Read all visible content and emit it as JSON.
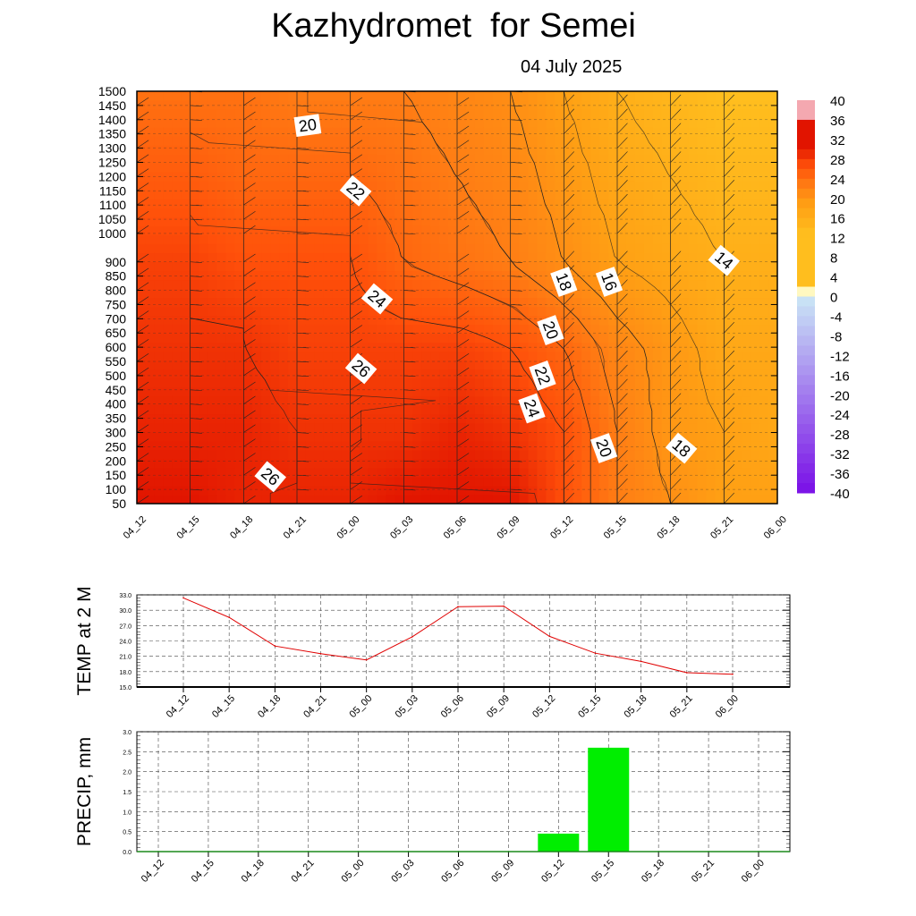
{
  "header": {
    "title": "Kazhydromet  for Semei",
    "date": "04 July 2025"
  },
  "chart_data": [
    {
      "type": "heatmap",
      "ylim": [
        50,
        1500
      ],
      "yticks": [
        50,
        100,
        150,
        200,
        250,
        300,
        350,
        400,
        450,
        500,
        550,
        600,
        650,
        700,
        750,
        800,
        850,
        900,
        1000,
        1050,
        1100,
        1150,
        1200,
        1250,
        1300,
        1350,
        1400,
        1450,
        1500
      ],
      "times": [
        "04_12",
        "04_15",
        "04_18",
        "04_21",
        "05_00",
        "05_03",
        "05_06",
        "05_09",
        "05_12",
        "05_15",
        "05_18",
        "05_21",
        "06_00"
      ],
      "heights": [
        50,
        300,
        600,
        900,
        1200,
        1500
      ],
      "temperature_grid": [
        [
          28,
          28,
          27,
          27,
          27,
          28,
          28,
          28,
          24,
          20,
          18,
          16,
          16
        ],
        [
          27,
          27,
          27,
          26,
          26,
          26,
          27,
          26,
          24,
          20,
          17,
          16,
          15
        ],
        [
          26,
          26,
          26,
          25,
          25,
          25,
          25,
          24,
          22,
          19,
          17,
          15,
          15
        ],
        [
          25,
          25,
          24,
          24,
          24,
          22,
          21,
          20,
          18,
          16,
          15,
          14,
          14
        ],
        [
          23,
          23,
          22,
          22,
          22,
          21,
          20,
          19,
          17,
          15,
          14,
          13,
          13
        ],
        [
          21,
          21,
          21,
          20,
          20,
          20,
          19,
          18,
          16,
          14,
          13,
          12,
          12
        ]
      ],
      "contour_labels": [
        {
          "text": "20",
          "time": 3.2,
          "height": 1380
        },
        {
          "text": "22",
          "time": 4.1,
          "height": 1150
        },
        {
          "text": "24",
          "time": 4.5,
          "height": 770
        },
        {
          "text": "26",
          "time": 4.2,
          "height": 525
        },
        {
          "text": "26",
          "time": 2.5,
          "height": 145
        },
        {
          "text": "18",
          "time": 8.0,
          "height": 830
        },
        {
          "text": "16",
          "time": 8.85,
          "height": 830
        },
        {
          "text": "14",
          "time": 11.0,
          "height": 905
        },
        {
          "text": "20",
          "time": 7.75,
          "height": 660
        },
        {
          "text": "22",
          "time": 7.6,
          "height": 500
        },
        {
          "text": "24",
          "time": 7.4,
          "height": 385
        },
        {
          "text": "20",
          "time": 8.75,
          "height": 245
        },
        {
          "text": "18",
          "time": 10.2,
          "height": 245
        }
      ],
      "colorbar_labels": [
        "40",
        "36",
        "32",
        "28",
        "24",
        "20",
        "16",
        "12",
        "8",
        "4",
        "0",
        "-4",
        "-8",
        "-12",
        "-16",
        "-20",
        "-24",
        "-28",
        "-32",
        "-36",
        "-40"
      ]
    },
    {
      "type": "line",
      "ylabel": "TEMP at 2 M",
      "x": [
        "04_12",
        "04_15",
        "04_18",
        "04_21",
        "05_00",
        "05_03",
        "05_06",
        "05_09",
        "05_12",
        "05_15",
        "05_18",
        "05_21",
        "06_00"
      ],
      "values": [
        32.4,
        28.6,
        23.0,
        21.5,
        20.3,
        24.8,
        30.7,
        30.8,
        24.9,
        21.6,
        20.0,
        17.8,
        17.5
      ],
      "ylim": [
        15,
        33
      ],
      "yticks": [
        "15.0",
        "18.0",
        "21.0",
        "24.0",
        "27.0",
        "30.0",
        "33.0"
      ],
      "color": "#e00000"
    },
    {
      "type": "bar",
      "ylabel": "PRECIP, mm",
      "categories": [
        "04_12",
        "04_15",
        "04_18",
        "04_21",
        "05_00",
        "05_03",
        "05_06",
        "05_09",
        "05_12",
        "05_15",
        "05_18",
        "05_21",
        "06_00"
      ],
      "values": [
        0,
        0,
        0,
        0,
        0,
        0,
        0,
        0,
        0.45,
        2.6,
        0,
        0,
        0
      ],
      "ylim": [
        0,
        3
      ],
      "yticks": [
        "0.0",
        "0.5",
        "1.0",
        "1.5",
        "2.0",
        "2.5",
        "3.0"
      ],
      "color": "#00ee00"
    }
  ]
}
